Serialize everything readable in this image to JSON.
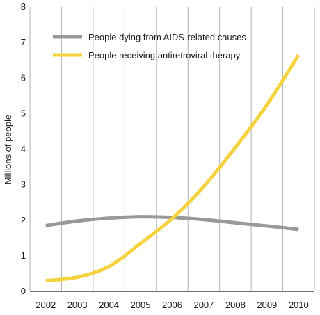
{
  "chart_data": {
    "type": "line",
    "title": "",
    "xlabel": "",
    "ylabel": "Millions of people",
    "x": [
      "2002",
      "2003",
      "2004",
      "2005",
      "2006",
      "2007",
      "2008",
      "2009",
      "2010"
    ],
    "ylim": [
      0,
      8
    ],
    "yticks": [
      "0",
      "1",
      "2",
      "3",
      "4",
      "5",
      "6",
      "7",
      "8"
    ],
    "grid": "vertical",
    "legend_position": "top-left",
    "series": [
      {
        "name": "People dying from AIDS-related causes",
        "color": "#999999",
        "values": [
          1.85,
          1.98,
          2.06,
          2.1,
          2.08,
          2.02,
          1.93,
          1.84,
          1.74
        ]
      },
      {
        "name": "People receiving antiretroviral therapy",
        "color": "#f5d33f",
        "values": [
          0.3,
          0.4,
          0.7,
          1.35,
          2.05,
          2.95,
          4.05,
          5.25,
          6.65
        ]
      }
    ]
  }
}
